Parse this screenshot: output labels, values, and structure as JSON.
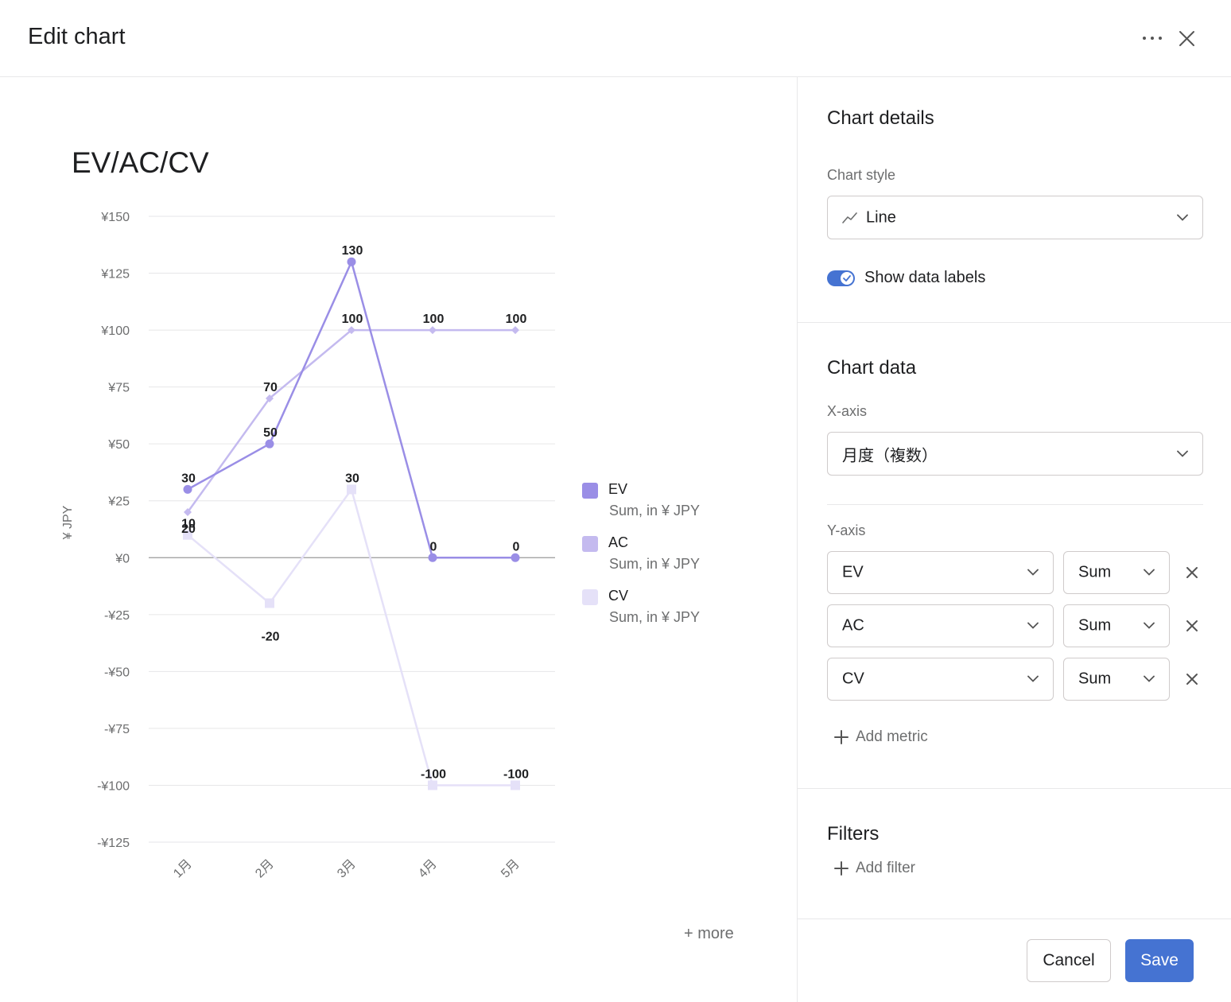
{
  "header": {
    "title": "Edit chart",
    "more_icon": "more-horizontal-icon",
    "close_icon": "close-icon"
  },
  "chart": {
    "title": "EV/AC/CV",
    "ylabel": "¥ JPY",
    "more_link": "+ more",
    "legend": [
      {
        "name": "EV",
        "sub": "Sum, in ¥ JPY",
        "color": "#9a8ee6"
      },
      {
        "name": "AC",
        "sub": "Sum, in ¥ JPY",
        "color": "#c4baef"
      },
      {
        "name": "CV",
        "sub": "Sum, in ¥ JPY",
        "color": "#e5e1f8"
      }
    ]
  },
  "chart_data": {
    "type": "line",
    "title": "EV/AC/CV",
    "xlabel": "",
    "ylabel": "¥ JPY",
    "categories": [
      "1月",
      "2月",
      "3月",
      "4月",
      "5月"
    ],
    "ylim": [
      -125,
      150
    ],
    "yticks": [
      150,
      125,
      100,
      75,
      50,
      25,
      0,
      -25,
      -50,
      -75,
      -100,
      -125
    ],
    "ytick_labels": [
      "¥150",
      "¥125",
      "¥100",
      "¥75",
      "¥50",
      "¥25",
      "¥0",
      "-¥25",
      "-¥50",
      "-¥75",
      "-¥100",
      "-¥125"
    ],
    "grid": true,
    "legend_position": "right",
    "series": [
      {
        "name": "EV",
        "values": [
          30,
          50,
          130,
          0,
          0
        ],
        "color": "#9a8ee6",
        "marker": "circle"
      },
      {
        "name": "AC",
        "values": [
          20,
          70,
          100,
          100,
          100
        ],
        "color": "#c4baef",
        "marker": "diamond"
      },
      {
        "name": "CV",
        "values": [
          10,
          -20,
          30,
          -100,
          -100
        ],
        "color": "#e5e1f8",
        "marker": "square"
      }
    ]
  },
  "side": {
    "details_title": "Chart details",
    "style_label": "Chart style",
    "style_value": "Line",
    "style_icon": "line-chart-icon",
    "show_labels": "Show data labels",
    "show_labels_on": true,
    "data_title": "Chart data",
    "xaxis_label": "X-axis",
    "xaxis_value": "月度（複数）",
    "yaxis_label": "Y-axis",
    "metrics": [
      {
        "field": "EV",
        "agg": "Sum"
      },
      {
        "field": "AC",
        "agg": "Sum"
      },
      {
        "field": "CV",
        "agg": "Sum"
      }
    ],
    "add_metric": "Add metric",
    "filters_title": "Filters",
    "add_filter": "Add filter",
    "cancel": "Cancel",
    "save": "Save"
  }
}
